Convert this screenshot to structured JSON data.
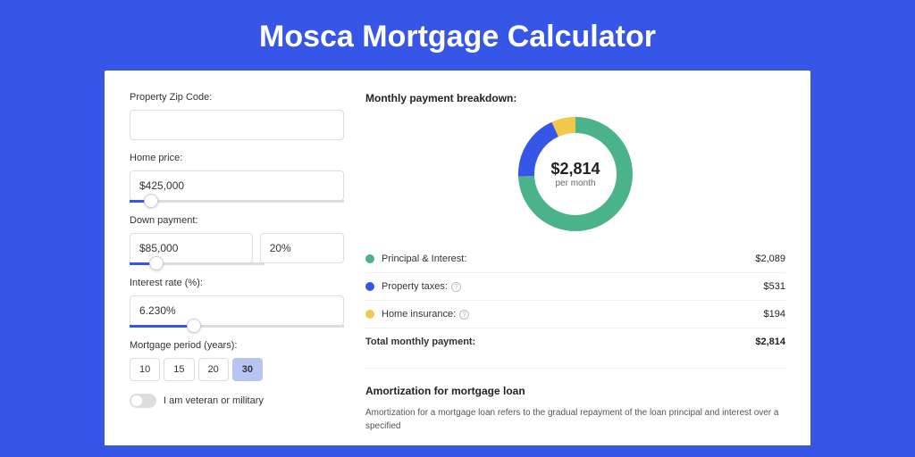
{
  "page": {
    "title": "Mosca Mortgage Calculator"
  },
  "colors": {
    "brand": "#3656e8",
    "principal": "#4bb38a",
    "taxes": "#3656e8",
    "insurance": "#f2c84b",
    "bg_white": "#ffffff",
    "border": "#dddddd"
  },
  "form": {
    "zip": {
      "label": "Property Zip Code:",
      "value": ""
    },
    "home_price": {
      "label": "Home price:",
      "value": "$425,000",
      "slider_pct": 10
    },
    "down_payment": {
      "label": "Down payment:",
      "value": "$85,000",
      "pct_value": "20%",
      "slider_pct": 20
    },
    "interest_rate": {
      "label": "Interest rate (%):",
      "value": "6.230%",
      "slider_pct": 30
    },
    "mortgage_period": {
      "label": "Mortgage period (years):",
      "options": [
        "10",
        "15",
        "20",
        "30"
      ],
      "selected": "30"
    },
    "veteran": {
      "label": "I am veteran or military",
      "checked": false
    }
  },
  "breakdown": {
    "title": "Monthly payment breakdown:",
    "center_value": "$2,814",
    "center_sub": "per month",
    "items": [
      {
        "key": "principal",
        "label": "Principal & Interest:",
        "value": "$2,089",
        "amount": 2089,
        "color": "#4bb38a",
        "info": false
      },
      {
        "key": "taxes",
        "label": "Property taxes:",
        "value": "$531",
        "amount": 531,
        "color": "#3656e8",
        "info": true
      },
      {
        "key": "insurance",
        "label": "Home insurance:",
        "value": "$194",
        "amount": 194,
        "color": "#f2c84b",
        "info": true
      }
    ],
    "total": {
      "label": "Total monthly payment:",
      "value": "$2,814",
      "amount": 2814
    },
    "donut": {
      "size": 128,
      "stroke": 18
    }
  },
  "amortization": {
    "title": "Amortization for mortgage loan",
    "text": "Amortization for a mortgage loan refers to the gradual repayment of the loan principal and interest over a specified"
  }
}
